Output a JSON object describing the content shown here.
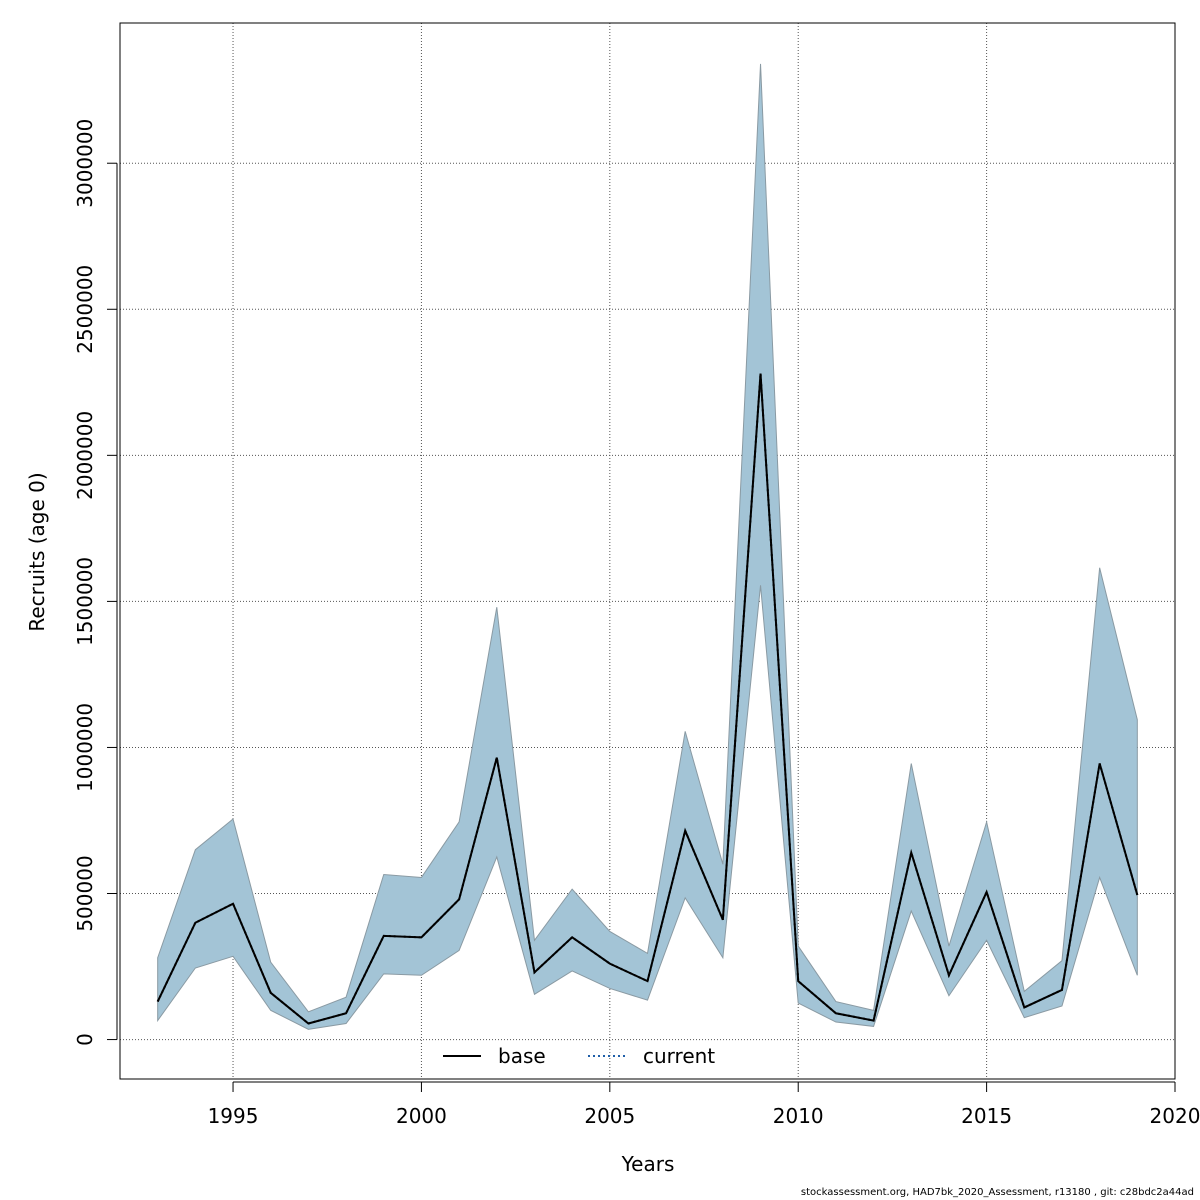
{
  "chart_data": {
    "type": "area",
    "title": "",
    "xlabel": "Years",
    "ylabel": "Recruits (age 0)",
    "xlim": [
      1992,
      2020
    ],
    "ylim": [
      -135000,
      3480000
    ],
    "x_ticks": [
      1995,
      2000,
      2005,
      2010,
      2015,
      2020
    ],
    "y_ticks": [
      0,
      500000,
      1000000,
      1500000,
      2000000,
      2500000,
      3000000
    ],
    "grid": true,
    "legend_placement": "bottom-center",
    "x": [
      1993,
      1994,
      1995,
      1996,
      1997,
      1998,
      1999,
      2000,
      2001,
      2002,
      2003,
      2004,
      2005,
      2006,
      2007,
      2008,
      2009,
      2010,
      2011,
      2012,
      2013,
      2014,
      2015,
      2016,
      2017,
      2018,
      2019
    ],
    "series": [
      {
        "name": "base",
        "style": "solid",
        "color": "#000000",
        "values": [
          130000,
          400000,
          465000,
          160000,
          55000,
          90000,
          355000,
          350000,
          480000,
          965000,
          230000,
          350000,
          260000,
          200000,
          715000,
          410000,
          2280000,
          200000,
          90000,
          65000,
          640000,
          220000,
          505000,
          110000,
          170000,
          945000,
          495000
        ]
      },
      {
        "name": "current",
        "style": "dotted",
        "color": "#1f5fa8",
        "values": [
          130000,
          400000,
          465000,
          160000,
          55000,
          90000,
          355000,
          350000,
          480000,
          965000,
          230000,
          350000,
          260000,
          200000,
          715000,
          410000,
          2280000,
          200000,
          90000,
          65000,
          640000,
          220000,
          505000,
          110000,
          170000,
          945000,
          495000
        ]
      }
    ],
    "band": {
      "color": "#a3c4d6",
      "edge_color": "#8a9aa3",
      "lower": [
        65000,
        245000,
        285000,
        100000,
        35000,
        55000,
        225000,
        220000,
        305000,
        625000,
        155000,
        235000,
        175000,
        135000,
        485000,
        280000,
        1555000,
        125000,
        60000,
        45000,
        440000,
        150000,
        340000,
        75000,
        115000,
        555000,
        220000
      ],
      "upper": [
        280000,
        650000,
        755000,
        265000,
        95000,
        145000,
        565000,
        555000,
        745000,
        1480000,
        340000,
        515000,
        370000,
        295000,
        1055000,
        600000,
        3340000,
        320000,
        130000,
        100000,
        945000,
        320000,
        745000,
        165000,
        270000,
        1615000,
        1095000
      ]
    }
  },
  "footer": {
    "text": "stockassessment.org, HAD7bk_2020_Assessment, r13180 , git: c28bdc2a44ad"
  }
}
